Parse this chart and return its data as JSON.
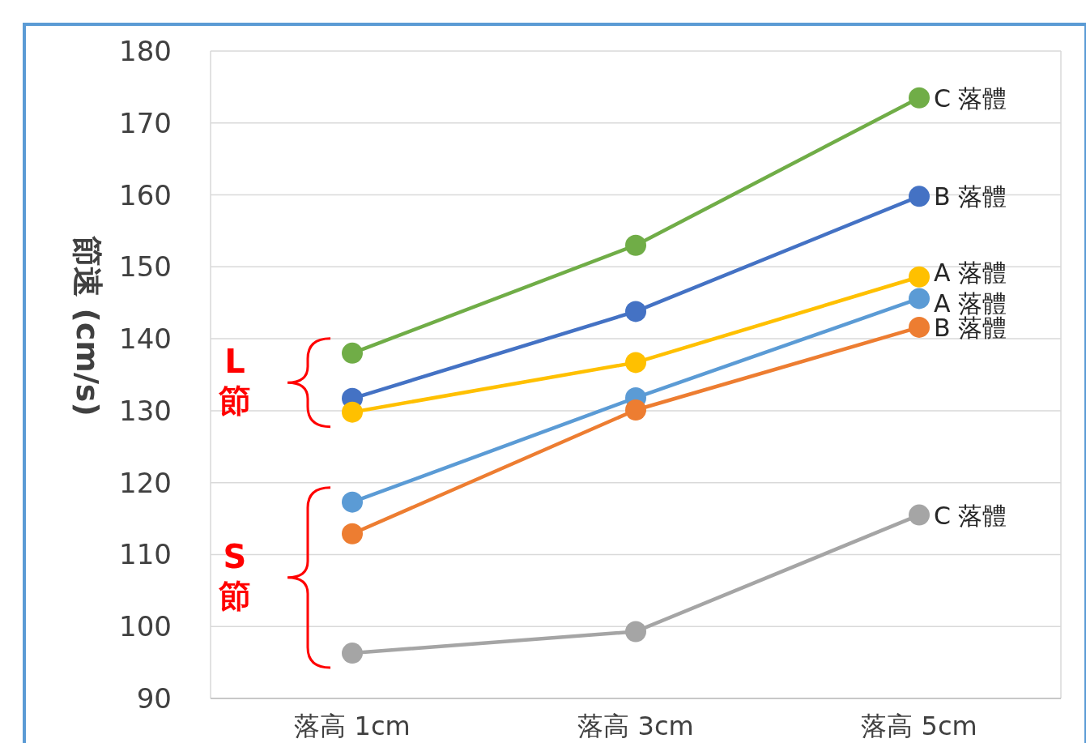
{
  "chart_data": {
    "type": "line",
    "ylabel": "節速 (cm/s)",
    "categories": [
      "落高 1cm",
      "落高 3cm",
      "落高 5cm"
    ],
    "series": [
      {
        "name": "C 落體",
        "color": "#70ad47",
        "values": [
          138,
          153,
          173.5
        ]
      },
      {
        "name": "B 落體",
        "color": "#4472c4",
        "values": [
          131.7,
          143.8,
          159.8
        ]
      },
      {
        "name": "A 落體",
        "color": "#ffc000",
        "values": [
          129.8,
          136.7,
          148.6
        ]
      },
      {
        "name": "A 落體",
        "color": "#5b9bd5",
        "values": [
          117.3,
          131.8,
          145.6
        ]
      },
      {
        "name": "B 落體",
        "color": "#ed7d31",
        "values": [
          112.9,
          130.1,
          141.6
        ]
      },
      {
        "name": "C 落體",
        "color": "#a5a5a5",
        "values": [
          96.3,
          99.3,
          115.5
        ]
      }
    ],
    "ylim": [
      90,
      180
    ],
    "yticks": [
      90,
      100,
      110,
      120,
      130,
      140,
      150,
      160,
      170,
      180
    ],
    "grid": "y",
    "marker": "circle",
    "annotations": [
      "L 節",
      "S 節"
    ]
  }
}
